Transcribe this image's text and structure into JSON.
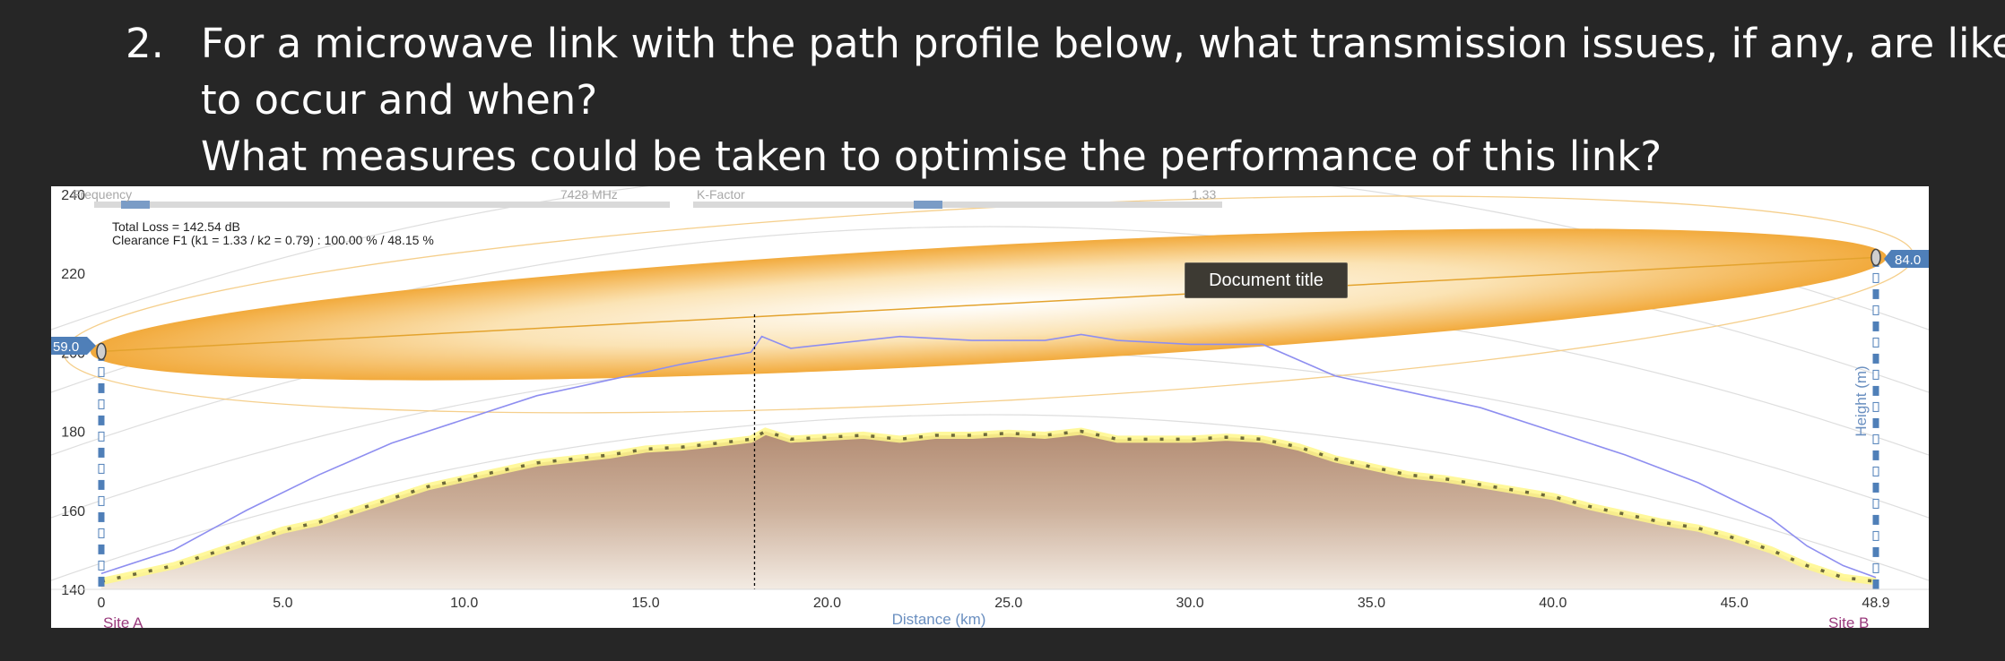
{
  "question": {
    "number": "2.",
    "line1": "For a microwave link with the path profile below, what transmission issues, if any, are likely",
    "line2": "to occur and when?",
    "line3": "What measures could be taken to optimise the performance of this link?"
  },
  "controls": {
    "frequency_label": "Frequency",
    "frequency_value": "7428 MHz",
    "kfactor_label": "K-Factor",
    "kfactor_value": "1.33"
  },
  "info": {
    "total_loss": "Total Loss = 142.54 dB",
    "clearance": "Clearance F1 (k1 = 1.33 / k2 = 0.79) : 100.00 % / 48.15 %"
  },
  "tooltip": "Document title",
  "site_a": {
    "label": "Site A",
    "antenna_height": "59.0"
  },
  "site_b": {
    "label": "Site B",
    "antenna_height": "84.0"
  },
  "colors": {
    "terrain": "#b8917a",
    "fresnel": "#f4b040",
    "clearance_line": "#8e8ef0",
    "panel_bg": "#ffffff"
  },
  "chart_data": {
    "type": "line",
    "title": "",
    "xlabel": "Distance (km)",
    "ylabel": "Height (m)",
    "x_ticks": [
      "0",
      "5.0",
      "10.0",
      "15.0",
      "20.0",
      "25.0",
      "30.0",
      "35.0",
      "40.0",
      "45.0",
      "48.9"
    ],
    "y_ticks": [
      "140",
      "160",
      "180",
      "200",
      "220",
      "240"
    ],
    "xlim": [
      0,
      48.9
    ],
    "ylim": [
      140,
      242
    ],
    "obstruction_marker_km": 18.0,
    "series": [
      {
        "x": [
          0,
          1,
          2,
          3,
          4,
          5,
          6,
          7,
          8,
          9,
          10,
          11,
          12,
          13,
          14,
          15,
          16,
          17,
          17.9,
          18.3,
          19,
          20,
          21,
          22,
          23,
          24,
          25,
          26,
          27,
          28,
          29,
          30,
          31,
          32,
          33,
          34,
          35,
          36,
          37,
          38,
          39,
          40,
          41,
          42,
          43,
          44,
          45,
          46,
          47,
          48,
          48.9
        ],
        "y": [
          142,
          144,
          146,
          149,
          152,
          155,
          157,
          160,
          163,
          166,
          168,
          170,
          172,
          173,
          174,
          175.5,
          176,
          177,
          178,
          180,
          178,
          178.5,
          179,
          178,
          179,
          179,
          179.5,
          179,
          180,
          178,
          178,
          178,
          178.5,
          178,
          176,
          173,
          171,
          169,
          168,
          166.5,
          165,
          163.5,
          161,
          159,
          157,
          155.5,
          153,
          150,
          146,
          143,
          142
        ]
      },
      {
        "x": [
          0,
          2,
          4,
          6,
          8,
          10,
          12,
          14,
          16,
          17.9,
          18.2,
          19,
          20,
          22,
          24,
          26,
          27,
          28,
          30,
          32,
          33,
          34,
          36,
          38,
          40,
          42,
          44,
          46,
          47,
          48,
          48.9
        ],
        "y": [
          144,
          150,
          160,
          169,
          177,
          183,
          189,
          193,
          197,
          200,
          204,
          201,
          202,
          204,
          203,
          203,
          204.5,
          203,
          202,
          202,
          198,
          194,
          190,
          186,
          180,
          174,
          167,
          158,
          151,
          146,
          143
        ]
      }
    ]
  }
}
